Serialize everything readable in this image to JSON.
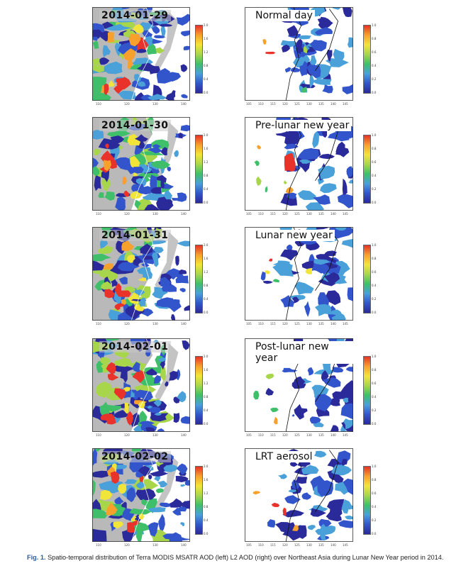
{
  "figure": {
    "rows": [
      {
        "date_label": "2014-01-29",
        "right_label": "Normal day"
      },
      {
        "date_label": "2014-01-30",
        "right_label": "Pre-lunar new year"
      },
      {
        "date_label": "2014-01-31",
        "right_label": "Lunar new year"
      },
      {
        "date_label": "2014-02-01",
        "right_label": "Post-lunar new year"
      },
      {
        "date_label": "2014-02-02",
        "right_label": "LRT aerosol"
      }
    ],
    "left_colorbar_ticks": [
      "2.0",
      "1.6",
      "1.2",
      "0.8",
      "0.4",
      "0.0"
    ],
    "right_colorbar_ticks": [
      "1.0",
      "0.8",
      "0.6",
      "0.4",
      "0.2",
      "0.0"
    ],
    "lon_ticks": [
      "110",
      "120",
      "130",
      "140"
    ],
    "right_lon_ticks": [
      "105",
      "110",
      "115",
      "120",
      "125",
      "130",
      "135",
      "140",
      "145"
    ],
    "colorbar_colors": [
      "#2a2a9a",
      "#3355cc",
      "#4aa0d8",
      "#3fbf6a",
      "#a8d64a",
      "#f2e53a",
      "#f7a12c",
      "#e8322a"
    ]
  },
  "caption": {
    "fig_label": "Fig. 1.",
    "text": " Spatio-temporal distribution of Terra MODIS MSATR AOD (left) L2 AOD (right) over Northeast Asia during Lunar New Year period in 2014."
  }
}
